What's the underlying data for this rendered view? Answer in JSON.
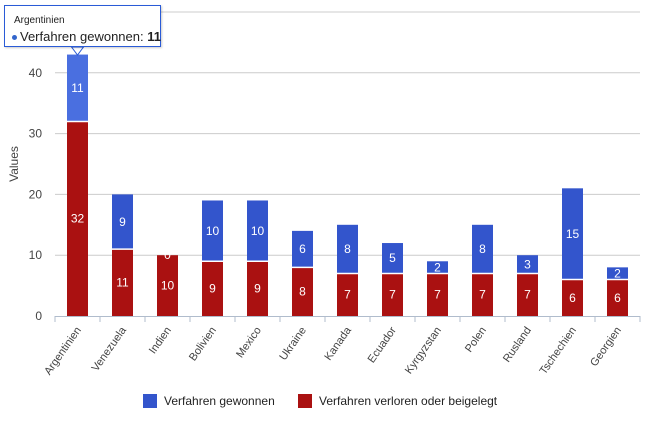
{
  "chart_data": {
    "type": "bar",
    "stacked": true,
    "title": "",
    "xlabel": "",
    "ylabel": "Values",
    "ylim": [
      0,
      50
    ],
    "yticks": [
      0,
      10,
      20,
      30,
      40
    ],
    "grid": true,
    "legend_position": "bottom",
    "categories": [
      "Argentinien",
      "Venezuela",
      "Indien",
      "Bolivien",
      "Mexico",
      "Ukraine",
      "Kanada",
      "Ecuador",
      "Kyrgyzstan",
      "Polen",
      "Rusland",
      "Tschechien",
      "Georgien"
    ],
    "series": [
      {
        "name": "Verfahren verloren oder beigelegt",
        "color": "#aa1111",
        "values": [
          32,
          11,
          10,
          9,
          9,
          8,
          7,
          7,
          7,
          7,
          7,
          6,
          6
        ]
      },
      {
        "name": "Verfahren gewonnen",
        "color": "#3355cc",
        "values": [
          11,
          9,
          0,
          10,
          10,
          6,
          8,
          5,
          2,
          8,
          3,
          15,
          2
        ]
      }
    ]
  },
  "tooltip": {
    "title": "Argentinien",
    "label": "Verfahren gewonnen:",
    "value": "11",
    "color": "#3366cc"
  }
}
